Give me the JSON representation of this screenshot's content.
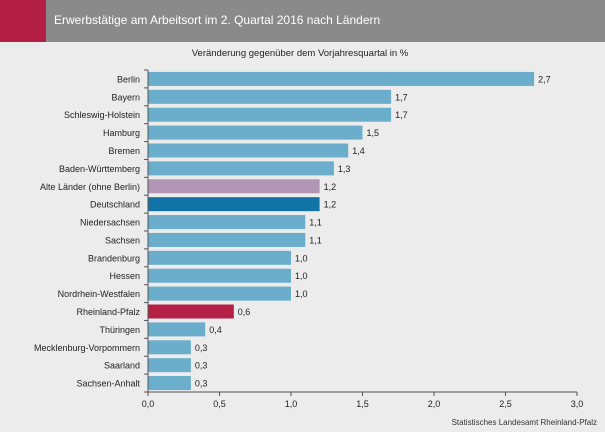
{
  "header": {
    "title": "Erwerbstätige am Arbeitsort im 2. Quartal 2016 nach Ländern"
  },
  "footer": {
    "source": "Statistisches Landesamt Rheinland-Pfalz"
  },
  "colors": {
    "header_bg": "#8a8a8a",
    "header_accent": "#b41f45",
    "bar_default": "#6aaecb",
    "bar_alte_laender": "#b096b4",
    "bar_deutschland": "#1173a6",
    "bar_rheinland_pfalz": "#b41f45"
  },
  "chart_data": {
    "type": "bar",
    "orientation": "horizontal",
    "title": "Veränderung gegenüber dem Vorjahresquartal in %",
    "categories": [
      "Berlin",
      "Bayern",
      "Schleswig-Holstein",
      "Hamburg",
      "Bremen",
      "Baden-Württemberg",
      "Alte Länder (ohne Berlin)",
      "Deutschland",
      "Niedersachsen",
      "Sachsen",
      "Brandenburg",
      "Hessen",
      "Nordrhein-Westfalen",
      "Rheinland-Pfalz",
      "Thüringen",
      "Mecklenburg-Vorpommern",
      "Saarland",
      "Sachsen-Anhalt"
    ],
    "values": [
      2.7,
      1.7,
      1.7,
      1.5,
      1.4,
      1.3,
      1.2,
      1.2,
      1.1,
      1.1,
      1.0,
      1.0,
      1.0,
      0.6,
      0.4,
      0.3,
      0.3,
      0.3
    ],
    "value_labels": [
      "2,7",
      "1,7",
      "1,7",
      "1,5",
      "1,4",
      "1,3",
      "1,2",
      "1,2",
      "1,1",
      "1,1",
      "1,0",
      "1,0",
      "1,0",
      "0,6",
      "0,4",
      "0,3",
      "0,3",
      "0,3"
    ],
    "bar_colors": [
      "#6aaecb",
      "#6aaecb",
      "#6aaecb",
      "#6aaecb",
      "#6aaecb",
      "#6aaecb",
      "#b096b4",
      "#1173a6",
      "#6aaecb",
      "#6aaecb",
      "#6aaecb",
      "#6aaecb",
      "#6aaecb",
      "#b41f45",
      "#6aaecb",
      "#6aaecb",
      "#6aaecb",
      "#6aaecb"
    ],
    "xlim": [
      0,
      3.0
    ],
    "xticks": [
      0,
      0.5,
      1.0,
      1.5,
      2.0,
      2.5,
      3.0
    ],
    "xtick_labels": [
      "0,0",
      "0,5",
      "1,0",
      "1,5",
      "2,0",
      "2,5",
      "3,0"
    ],
    "grid": false,
    "legend": false
  }
}
